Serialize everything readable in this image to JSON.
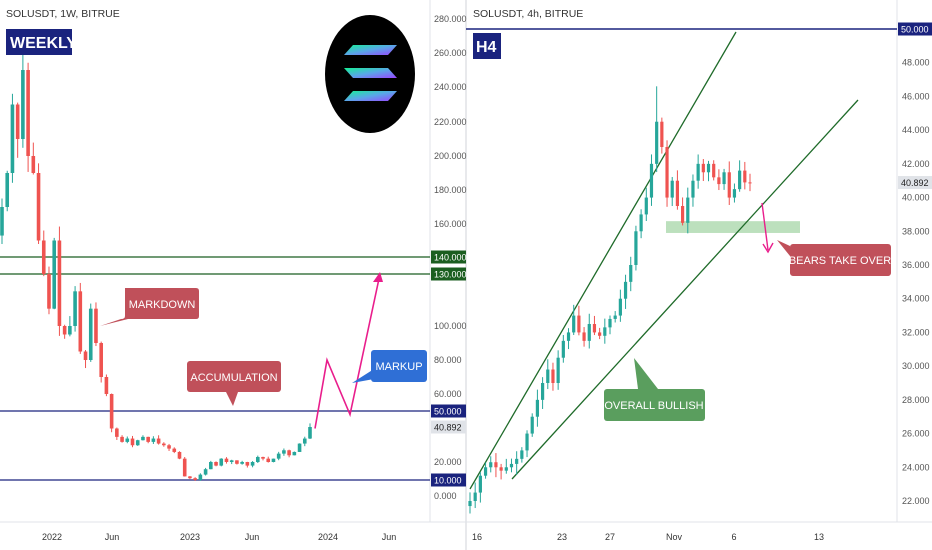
{
  "colors": {
    "bull": "#26a69a",
    "bear": "#ef5350",
    "navy_line": "#1a237e",
    "green_line": "#1b5e20",
    "trend_line": "#1f6b2a",
    "magenta": "#e91e8c",
    "callout_red": "#c0505a",
    "callout_blue": "#2f6fd6",
    "callout_green": "#5a9e5e",
    "zone_green": "#a5d6a7",
    "tag_blue": "#1a237e",
    "tag_green": "#1b5e20",
    "axis_text": "#555555"
  },
  "left_panel": {
    "symbol": "SOLUSDT, 1W, BITRUE",
    "timeframe_badge": "WEEKLY",
    "logo_icon": "solana-logo-icon",
    "y_ticks": [
      "280.000",
      "260.000",
      "240.000",
      "220.000",
      "200.000",
      "180.000",
      "160.000",
      "140.000",
      "130.000",
      "100.000",
      "80.000",
      "60.000",
      "50.000",
      "40.892",
      "20.000",
      "10.000",
      "0.000"
    ],
    "x_ticks": [
      "2022",
      "Jun",
      "2023",
      "Jun",
      "2024",
      "Jun"
    ],
    "level_tags": {
      "l140": "140.000",
      "l130": "130.000",
      "l50": "50.000",
      "last": "40.892",
      "l10": "10.000"
    },
    "callouts": {
      "markdown": "MARKDOWN",
      "accumulation": "ACCUMULATION",
      "markup": "MARKUP"
    }
  },
  "right_panel": {
    "symbol": "SOLUSDT, 4h, BITRUE",
    "timeframe_badge": "H4",
    "y_ticks": [
      "50.000",
      "48.000",
      "46.000",
      "44.000",
      "42.000",
      "40.892",
      "40.000",
      "38.000",
      "36.000",
      "34.000",
      "32.000",
      "30.000",
      "28.000",
      "26.000",
      "24.000",
      "22.000"
    ],
    "x_ticks": [
      "16",
      "23",
      "27",
      "Nov",
      "6",
      "13"
    ],
    "level_tags": {
      "l50": "50.000",
      "last": "40.892"
    },
    "callouts": {
      "bears": "BEARS TAKE OVER",
      "bullish": "OVERALL BULLISH"
    }
  },
  "chart_data": [
    {
      "type": "candlestick",
      "title": "SOLUSDT, 1W, BITRUE",
      "ylim": [
        0,
        290
      ],
      "horizontal_levels": [
        140,
        130,
        50,
        10
      ],
      "last_price": 40.892,
      "x_ticks": [
        "2022",
        "Jun",
        "2023",
        "Jun",
        "2024",
        "Jun"
      ],
      "annotations": [
        "MARKDOWN",
        "ACCUMULATION",
        "MARKUP"
      ],
      "projection": {
        "from": 40,
        "to": 130,
        "shape": "zigzag-up"
      },
      "close_path": [
        170,
        190,
        230,
        210,
        250,
        200,
        190,
        150,
        130,
        110,
        150,
        100,
        95,
        100,
        120,
        85,
        80,
        110,
        90,
        70,
        60,
        40,
        35,
        32,
        34,
        30,
        33,
        35,
        32,
        34,
        31,
        30,
        28,
        26,
        22,
        12,
        11,
        10,
        13,
        16,
        20,
        18,
        22,
        20,
        21,
        19,
        20,
        18,
        20,
        23,
        22,
        20,
        22,
        25,
        27,
        24,
        26,
        31,
        34,
        40.892
      ]
    },
    {
      "type": "candlestick",
      "title": "SOLUSDT, 4h, BITRUE",
      "ylim": [
        21,
        50.5
      ],
      "horizontal_levels": [
        50
      ],
      "last_price": 40.892,
      "support_zone": [
        37.9,
        38.6
      ],
      "x_ticks": [
        "16",
        "23",
        "27",
        "Nov",
        "6",
        "13"
      ],
      "annotations": [
        "BEARS TAKE OVER",
        "OVERALL BULLISH"
      ],
      "close_path": [
        22,
        22.5,
        23.5,
        24,
        24.3,
        24,
        23.8,
        24,
        24.2,
        24.5,
        25,
        26,
        27,
        28,
        29,
        29.8,
        29,
        30.5,
        31.5,
        32,
        33,
        32,
        31.5,
        32.5,
        32,
        31.8,
        32.3,
        32.8,
        33,
        34,
        35,
        36,
        38,
        39,
        40,
        42,
        44.5,
        43,
        40,
        41,
        39.5,
        38.5,
        40,
        41,
        42,
        41.5,
        42,
        41.2,
        40.8,
        41.5,
        40,
        40.5,
        41.6,
        40.9,
        40.892
      ]
    }
  ]
}
